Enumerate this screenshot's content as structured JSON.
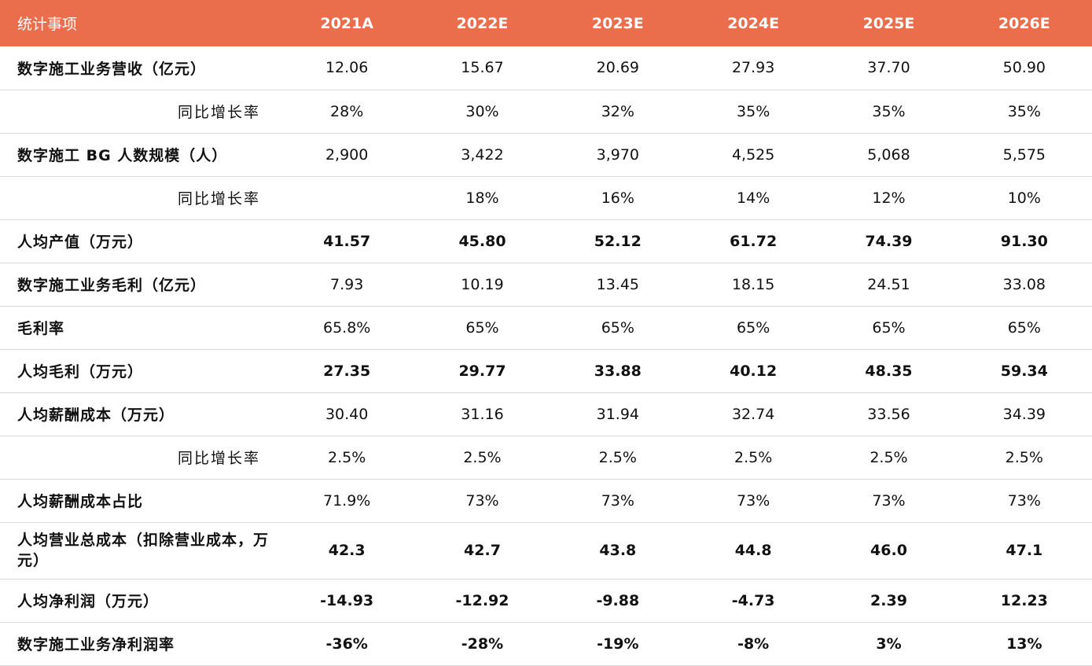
{
  "table": {
    "headers": [
      "统计事项",
      "2021A",
      "2022E",
      "2023E",
      "2024E",
      "2025E",
      "2026E"
    ],
    "rows": [
      {
        "label": "数字施工业务营收（亿元）",
        "values": [
          "12.06",
          "15.67",
          "20.69",
          "27.93",
          "37.70",
          "50.90"
        ]
      },
      {
        "label": "同比增长率",
        "values": [
          "28%",
          "30%",
          "32%",
          "35%",
          "35%",
          "35%"
        ]
      },
      {
        "label": "数字施工 BG 人数规模（人）",
        "values": [
          "2,900",
          "3,422",
          "3,970",
          "4,525",
          "5,068",
          "5,575"
        ]
      },
      {
        "label": "同比增长率",
        "values": [
          "",
          "18%",
          "16%",
          "14%",
          "12%",
          "10%"
        ]
      },
      {
        "label": "人均产值（万元）",
        "values": [
          "41.57",
          "45.80",
          "52.12",
          "61.72",
          "74.39",
          "91.30"
        ]
      },
      {
        "label": "数字施工业务毛利（亿元）",
        "values": [
          "7.93",
          "10.19",
          "13.45",
          "18.15",
          "24.51",
          "33.08"
        ]
      },
      {
        "label": "毛利率",
        "values": [
          "65.8%",
          "65%",
          "65%",
          "65%",
          "65%",
          "65%"
        ]
      },
      {
        "label": "人均毛利（万元）",
        "values": [
          "27.35",
          "29.77",
          "33.88",
          "40.12",
          "48.35",
          "59.34"
        ]
      },
      {
        "label": "人均薪酬成本（万元）",
        "values": [
          "30.40",
          "31.16",
          "31.94",
          "32.74",
          "33.56",
          "34.39"
        ]
      },
      {
        "label": "同比增长率",
        "values": [
          "2.5%",
          "2.5%",
          "2.5%",
          "2.5%",
          "2.5%",
          "2.5%"
        ]
      },
      {
        "label": "人均薪酬成本占比",
        "values": [
          "71.9%",
          "73%",
          "73%",
          "73%",
          "73%",
          "73%"
        ]
      },
      {
        "label": "人均营业总成本（扣除营业成本，万元）",
        "values": [
          "42.3",
          "42.7",
          "43.8",
          "44.8",
          "46.0",
          "47.1"
        ]
      },
      {
        "label": "人均净利润（万元）",
        "values": [
          "-14.93",
          "-12.92",
          "-9.88",
          "-4.73",
          "2.39",
          "12.23"
        ]
      },
      {
        "label": "数字施工业务净利润率",
        "values": [
          "-36%",
          "-28%",
          "-19%",
          "-8%",
          "3%",
          "13%"
        ]
      }
    ]
  }
}
